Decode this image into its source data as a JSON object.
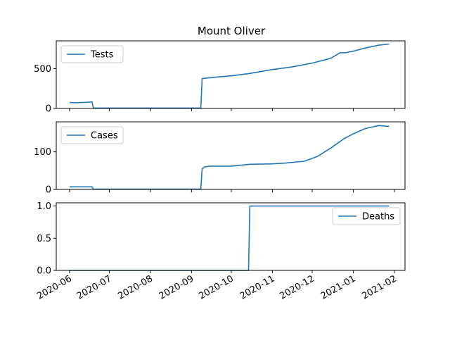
{
  "chart_data": {
    "type": "line",
    "title": "Mount Oliver",
    "line_color": "#1f77b4",
    "x_tick_labels": [
      "2020-06",
      "2020-07",
      "2020-08",
      "2020-09",
      "2020-10",
      "2020-11",
      "2020-12",
      "2021-01",
      "2021-02"
    ],
    "x_tick_dates": [
      "2020-06-01",
      "2020-07-01",
      "2020-08-01",
      "2020-09-01",
      "2020-10-01",
      "2020-11-01",
      "2020-12-01",
      "2021-01-01",
      "2021-02-01"
    ],
    "xlim": [
      "2020-05-22",
      "2021-02-09"
    ],
    "panels": [
      {
        "series": [
          {
            "name": "Tests",
            "x": [
              "2020-06-01",
              "2020-06-05",
              "2020-06-10",
              "2020-06-15",
              "2020-06-18",
              "2020-06-19",
              "2020-07-15",
              "2020-08-15",
              "2020-09-08",
              "2020-09-09",
              "2020-09-20",
              "2020-10-01",
              "2020-10-15",
              "2020-11-01",
              "2020-11-15",
              "2020-12-01",
              "2020-12-15",
              "2020-12-22",
              "2020-12-26",
              "2021-01-01",
              "2021-01-10",
              "2021-01-20",
              "2021-01-28"
            ],
            "y": [
              75,
              72,
              74,
              78,
              82,
              5,
              5,
              5,
              5,
              375,
              395,
              410,
              440,
              490,
              520,
              570,
              630,
              700,
              700,
              720,
              760,
              795,
              810
            ]
          }
        ],
        "ylim": [
          0,
          850
        ],
        "yticks": [
          0,
          500
        ],
        "legend_loc": "upper left"
      },
      {
        "series": [
          {
            "name": "Cases",
            "x": [
              "2020-06-01",
              "2020-06-10",
              "2020-06-18",
              "2020-06-19",
              "2020-07-15",
              "2020-08-15",
              "2020-09-08",
              "2020-09-09",
              "2020-09-11",
              "2020-09-15",
              "2020-10-01",
              "2020-10-15",
              "2020-11-01",
              "2020-11-10",
              "2020-11-25",
              "2020-12-05",
              "2020-12-15",
              "2020-12-25",
              "2021-01-01",
              "2021-01-10",
              "2021-01-20",
              "2021-01-28"
            ],
            "y": [
              7,
              7,
              7,
              1,
              1,
              1,
              1,
              55,
              60,
              62,
              62,
              67,
              68,
              70,
              75,
              88,
              110,
              135,
              148,
              162,
              170,
              168
            ]
          }
        ],
        "ylim": [
          0,
          180
        ],
        "yticks": [
          0,
          100
        ],
        "legend_loc": "upper left"
      },
      {
        "series": [
          {
            "name": "Deaths",
            "x": [
              "2020-06-01",
              "2020-10-14",
              "2020-10-15",
              "2021-01-28"
            ],
            "y": [
              0,
              0,
              1,
              1
            ]
          }
        ],
        "ylim": [
          0,
          1.05
        ],
        "yticks": [
          0.0,
          0.5,
          1.0
        ],
        "ytick_labels": [
          "0.0",
          "0.5",
          "1.0"
        ],
        "legend_loc": "upper right"
      }
    ]
  }
}
